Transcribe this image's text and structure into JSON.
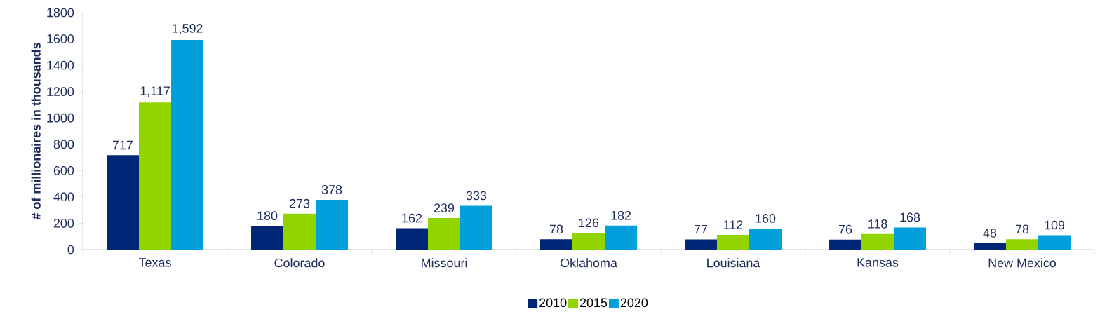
{
  "chart_data": {
    "type": "bar",
    "ylabel": "# of millionaires in thousands",
    "categories": [
      "Texas",
      "Colorado",
      "Missouri",
      "Oklahoma",
      "Louisiana",
      "Kansas",
      "New Mexico"
    ],
    "series": [
      {
        "name": "2010",
        "color": "#002776",
        "values": [
          717,
          180,
          162,
          78,
          77,
          76,
          48
        ],
        "value_labels": [
          "717",
          "180",
          "162",
          "78",
          "77",
          "76",
          "48"
        ]
      },
      {
        "name": "2015",
        "color": "#92d400",
        "values": [
          1117,
          273,
          239,
          126,
          112,
          118,
          78
        ],
        "value_labels": [
          "1,117",
          "273",
          "239",
          "126",
          "112",
          "118",
          "78"
        ]
      },
      {
        "name": "2020",
        "color": "#00a0dc",
        "values": [
          1592,
          378,
          333,
          182,
          160,
          168,
          109
        ],
        "value_labels": [
          "1,592",
          "378",
          "333",
          "182",
          "160",
          "168",
          "109"
        ]
      }
    ],
    "ylim": [
      0,
      1800
    ],
    "yticks": [
      0,
      200,
      400,
      600,
      800,
      1000,
      1200,
      1400,
      1600,
      1800
    ],
    "grid": false,
    "legend": "bottom"
  }
}
